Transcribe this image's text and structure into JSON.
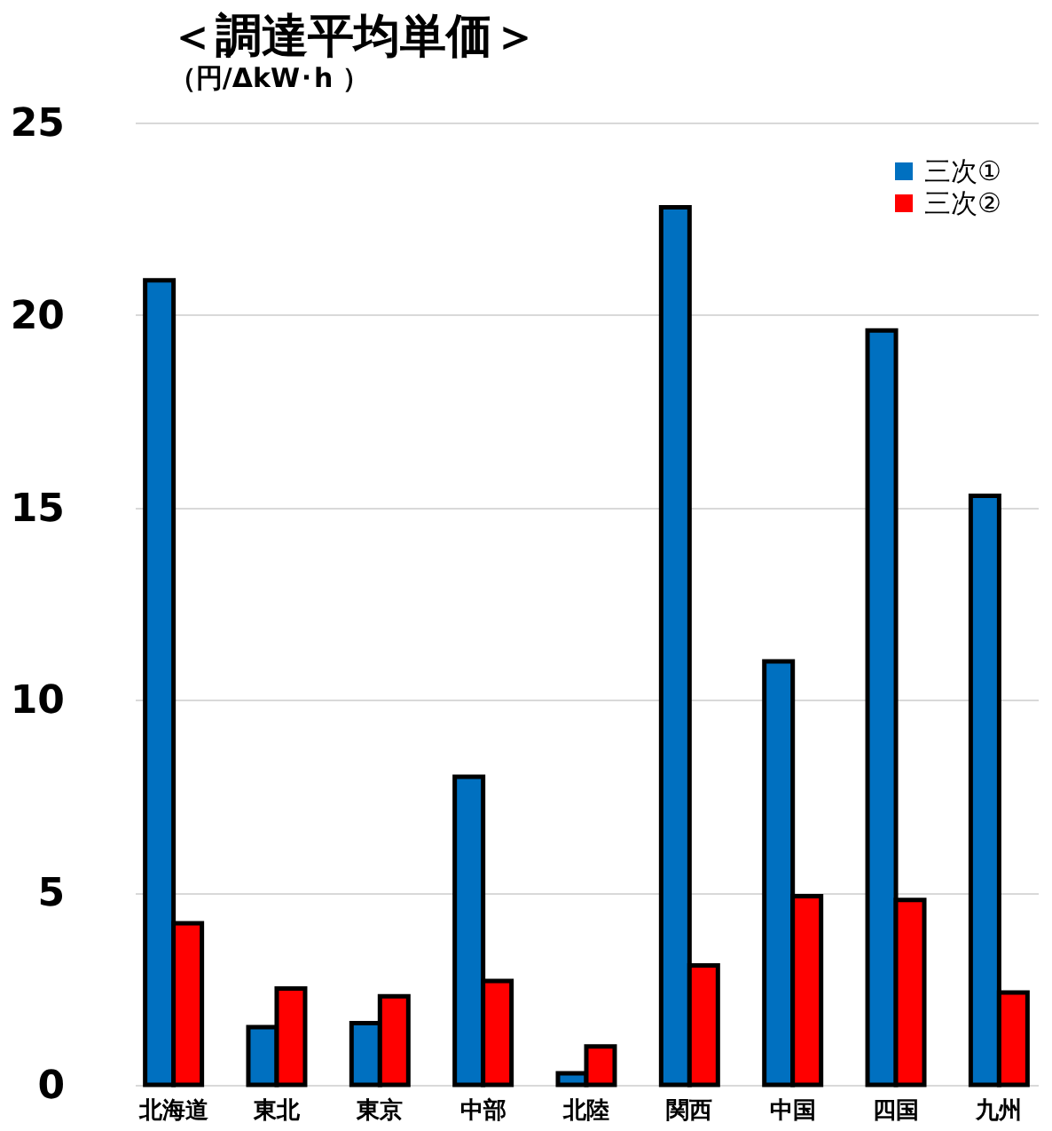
{
  "chart_data": {
    "type": "bar",
    "title": "＜調達平均単価＞",
    "subtitle": "（円/ΔkW･h ）",
    "categories": [
      "北海道",
      "東北",
      "東京",
      "中部",
      "北陸",
      "関西",
      "中国",
      "四国",
      "九州"
    ],
    "series": [
      {
        "name": "三次①",
        "color": "#0070c0",
        "values": [
          20.9,
          1.5,
          1.6,
          8.0,
          0.3,
          22.8,
          11.0,
          19.6,
          15.3
        ]
      },
      {
        "name": "三次②",
        "color": "#ff0000",
        "values": [
          4.2,
          2.5,
          2.3,
          2.7,
          1.0,
          3.1,
          4.9,
          4.8,
          2.4
        ]
      }
    ],
    "ylim": [
      0,
      25
    ],
    "yticks": [
      0,
      5,
      10,
      15,
      20,
      25
    ],
    "grid": "y",
    "legend": "top right"
  }
}
